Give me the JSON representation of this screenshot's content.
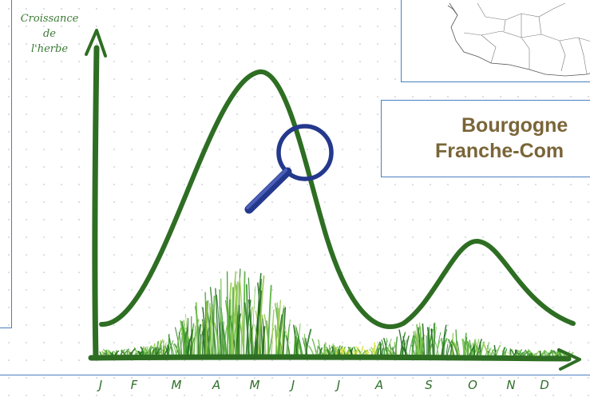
{
  "diagram": {
    "y_axis_label": [
      "Croissance",
      "de",
      "l'herbe"
    ],
    "region_label": [
      "Bourgogne",
      "Franche-Com"
    ],
    "months": [
      "J",
      "F",
      "M",
      "A",
      "M",
      "J",
      "J",
      "A",
      "S",
      "O",
      "N",
      "D"
    ],
    "icons": [
      "magnifier-icon",
      "france-map-icon",
      "grass-illustration"
    ],
    "colors": {
      "curve": "#2e6e23",
      "magnifier": "#24388c",
      "region_text": "#7a6538",
      "frame": "#4a7fc1"
    }
  }
}
